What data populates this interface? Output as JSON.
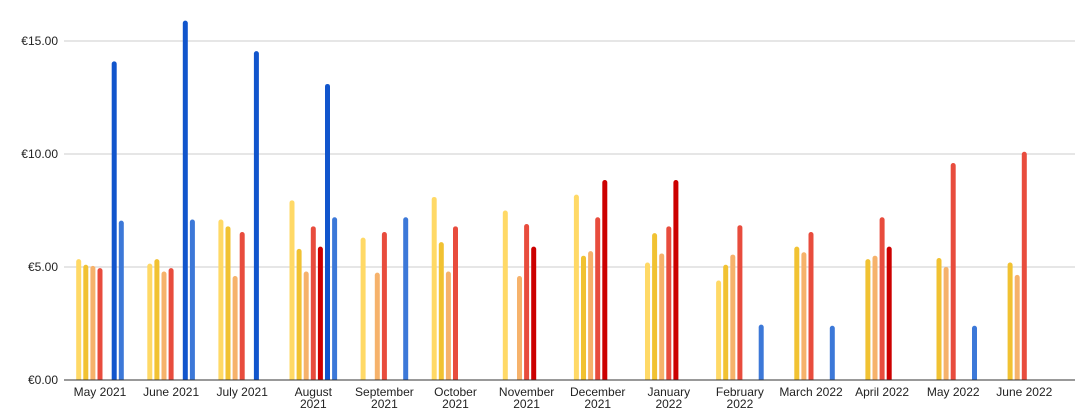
{
  "chart_data": {
    "type": "bar",
    "title": "",
    "xlabel": "",
    "ylabel": "",
    "ylim": [
      0,
      16.5
    ],
    "grid": true,
    "legend": "none",
    "y_ticks": [
      {
        "value": 0,
        "label": "€0.00"
      },
      {
        "value": 5,
        "label": "€5.00"
      },
      {
        "value": 10,
        "label": "€10.00"
      },
      {
        "value": 15,
        "label": "€15.00"
      }
    ],
    "categories": [
      [
        "May 2021"
      ],
      [
        "June 2021"
      ],
      [
        "July 2021"
      ],
      [
        "August",
        "2021"
      ],
      [
        "September",
        "2021"
      ],
      [
        "October",
        "2021"
      ],
      [
        "November",
        "2021"
      ],
      [
        "December",
        "2021"
      ],
      [
        "January",
        "2022"
      ],
      [
        "February",
        "2022"
      ],
      [
        "March 2022"
      ],
      [
        "April 2022"
      ],
      [
        "May 2022"
      ],
      [
        "June 2022"
      ]
    ],
    "series": [
      {
        "color": "#ffd966",
        "values": [
          5.35,
          5.15,
          7.1,
          7.95,
          6.3,
          8.1,
          7.5,
          8.2,
          5.2,
          4.4,
          null,
          null,
          null,
          null
        ]
      },
      {
        "color": "#f1c232",
        "values": [
          5.1,
          5.35,
          6.8,
          5.8,
          null,
          6.1,
          null,
          5.5,
          6.5,
          5.1,
          5.9,
          5.35,
          5.4,
          5.2
        ]
      },
      {
        "color": "#f6b26b",
        "values": [
          5.05,
          4.8,
          4.6,
          4.8,
          4.75,
          4.8,
          4.6,
          5.7,
          5.6,
          5.55,
          5.65,
          5.5,
          5.0,
          4.65
        ]
      },
      {
        "color": "#e84c3d",
        "values": [
          4.95,
          4.95,
          6.55,
          6.8,
          6.55,
          6.8,
          6.9,
          7.2,
          6.8,
          6.85,
          6.55,
          7.2,
          9.6,
          10.1
        ]
      },
      {
        "color": "#cc0000",
        "values": [
          null,
          null,
          null,
          5.9,
          null,
          null,
          5.9,
          8.85,
          8.85,
          null,
          null,
          5.9,
          null,
          null
        ]
      },
      {
        "color": "#1155cc",
        "values": [
          14.1,
          15.9,
          14.55,
          13.1,
          null,
          null,
          null,
          null,
          null,
          null,
          null,
          null,
          null,
          null
        ]
      },
      {
        "color": "#3c78d8",
        "values": [
          7.05,
          7.1,
          null,
          7.2,
          7.2,
          null,
          null,
          null,
          null,
          2.45,
          2.4,
          null,
          2.4,
          null
        ]
      }
    ]
  }
}
